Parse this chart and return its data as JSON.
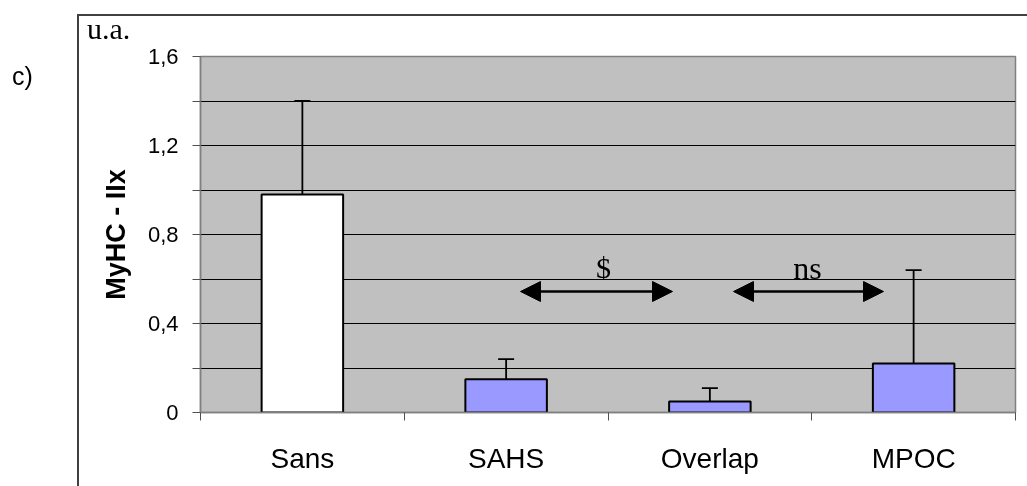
{
  "chart_data": {
    "type": "bar",
    "ylabel": "MyHC - IIx",
    "annotations": [
      "c)",
      "u.a.",
      "$",
      "ns"
    ],
    "categories": [
      "Sans",
      "SAHS",
      "Overlap",
      "MPOC"
    ],
    "values": [
      0.98,
      0.15,
      0.05,
      0.22
    ],
    "colors": [
      "#ffffff",
      "#9999ff",
      "#9999ff",
      "#9999ff"
    ],
    "errors": [
      [
        0.98,
        1.4
      ],
      [
        0.15,
        0.24
      ],
      [
        0.05,
        0.11
      ],
      [
        0.22,
        0.64
      ]
    ],
    "ylim": [
      0,
      1.6
    ],
    "yticks": [
      0,
      {
        "value": 0.2,
        "label": null
      },
      {
        "value": 0.4,
        "label": "0,4"
      },
      {
        "value": 0.6,
        "label": null
      },
      {
        "value": 0.8,
        "label": "0,8"
      },
      {
        "value": 1.0,
        "label": null
      },
      {
        "value": 1.2,
        "label": "1,2"
      },
      {
        "value": 1.4,
        "label": null
      },
      {
        "value": 1.6,
        "label": "1,6"
      }
    ],
    "grid": "y"
  }
}
